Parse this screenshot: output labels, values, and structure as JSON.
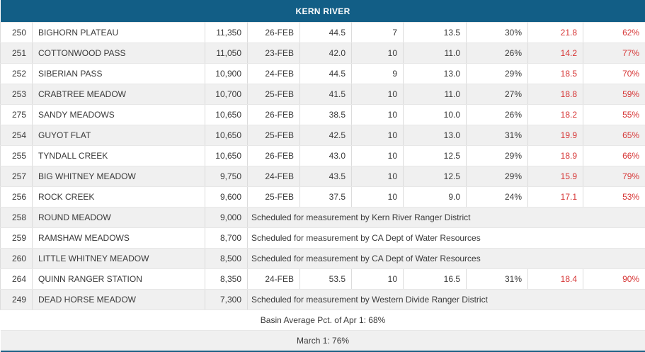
{
  "table": {
    "title": "KERN RIVER",
    "rows": [
      {
        "num": "250",
        "name": "BIGHORN PLATEAU",
        "elev": "11,350",
        "date": "26-FEB",
        "depth": "44.5",
        "count": "7",
        "water_content": "13.5",
        "density": "30%",
        "apr1_avg": "21.8",
        "apr1_pct": "62%"
      },
      {
        "num": "251",
        "name": "COTTONWOOD PASS",
        "elev": "11,050",
        "date": "23-FEB",
        "depth": "42.0",
        "count": "10",
        "water_content": "11.0",
        "density": "26%",
        "apr1_avg": "14.2",
        "apr1_pct": "77%"
      },
      {
        "num": "252",
        "name": "SIBERIAN PASS",
        "elev": "10,900",
        "date": "24-FEB",
        "depth": "44.5",
        "count": "9",
        "water_content": "13.0",
        "density": "29%",
        "apr1_avg": "18.5",
        "apr1_pct": "70%"
      },
      {
        "num": "253",
        "name": "CRABTREE MEADOW",
        "elev": "10,700",
        "date": "25-FEB",
        "depth": "41.5",
        "count": "10",
        "water_content": "11.0",
        "density": "27%",
        "apr1_avg": "18.8",
        "apr1_pct": "59%"
      },
      {
        "num": "275",
        "name": "SANDY MEADOWS",
        "elev": "10,650",
        "date": "26-FEB",
        "depth": "38.5",
        "count": "10",
        "water_content": "10.0",
        "density": "26%",
        "apr1_avg": "18.2",
        "apr1_pct": "55%"
      },
      {
        "num": "254",
        "name": "GUYOT FLAT",
        "elev": "10,650",
        "date": "25-FEB",
        "depth": "42.5",
        "count": "10",
        "water_content": "13.0",
        "density": "31%",
        "apr1_avg": "19.9",
        "apr1_pct": "65%"
      },
      {
        "num": "255",
        "name": "TYNDALL CREEK",
        "elev": "10,650",
        "date": "26-FEB",
        "depth": "43.0",
        "count": "10",
        "water_content": "12.5",
        "density": "29%",
        "apr1_avg": "18.9",
        "apr1_pct": "66%"
      },
      {
        "num": "257",
        "name": "BIG WHITNEY MEADOW",
        "elev": "9,750",
        "date": "24-FEB",
        "depth": "43.5",
        "count": "10",
        "water_content": "12.5",
        "density": "29%",
        "apr1_avg": "15.9",
        "apr1_pct": "79%"
      },
      {
        "num": "256",
        "name": "ROCK CREEK",
        "elev": "9,600",
        "date": "25-FEB",
        "depth": "37.5",
        "count": "10",
        "water_content": "9.0",
        "density": "24%",
        "apr1_avg": "17.1",
        "apr1_pct": "53%"
      },
      {
        "num": "258",
        "name": "ROUND MEADOW",
        "elev": "9,000",
        "note": "Scheduled for measurement by Kern River Ranger District"
      },
      {
        "num": "259",
        "name": "RAMSHAW MEADOWS",
        "elev": "8,700",
        "note": "Scheduled for measurement by CA Dept of Water Resources"
      },
      {
        "num": "260",
        "name": "LITTLE WHITNEY MEADOW",
        "elev": "8,500",
        "note": "Scheduled for measurement by CA Dept of Water Resources"
      },
      {
        "num": "264",
        "name": "QUINN RANGER STATION",
        "elev": "8,350",
        "date": "24-FEB",
        "depth": "53.5",
        "count": "10",
        "water_content": "16.5",
        "density": "31%",
        "apr1_avg": "18.4",
        "apr1_pct": "90%"
      },
      {
        "num": "249",
        "name": "DEAD HORSE MEADOW",
        "elev": "7,300",
        "note": "Scheduled for measurement by Western Divide Ranger District"
      }
    ],
    "footer": {
      "basin_average": "Basin Average Pct. of Apr 1: 68%",
      "march1": "March 1: 76%"
    }
  },
  "colors": {
    "header_bg": "#125e86",
    "bottom_border": "#1a5e84",
    "alt_row_bg": "#f0f0f0",
    "highlight_red": "#d63535",
    "text": "#3a3a3a"
  }
}
